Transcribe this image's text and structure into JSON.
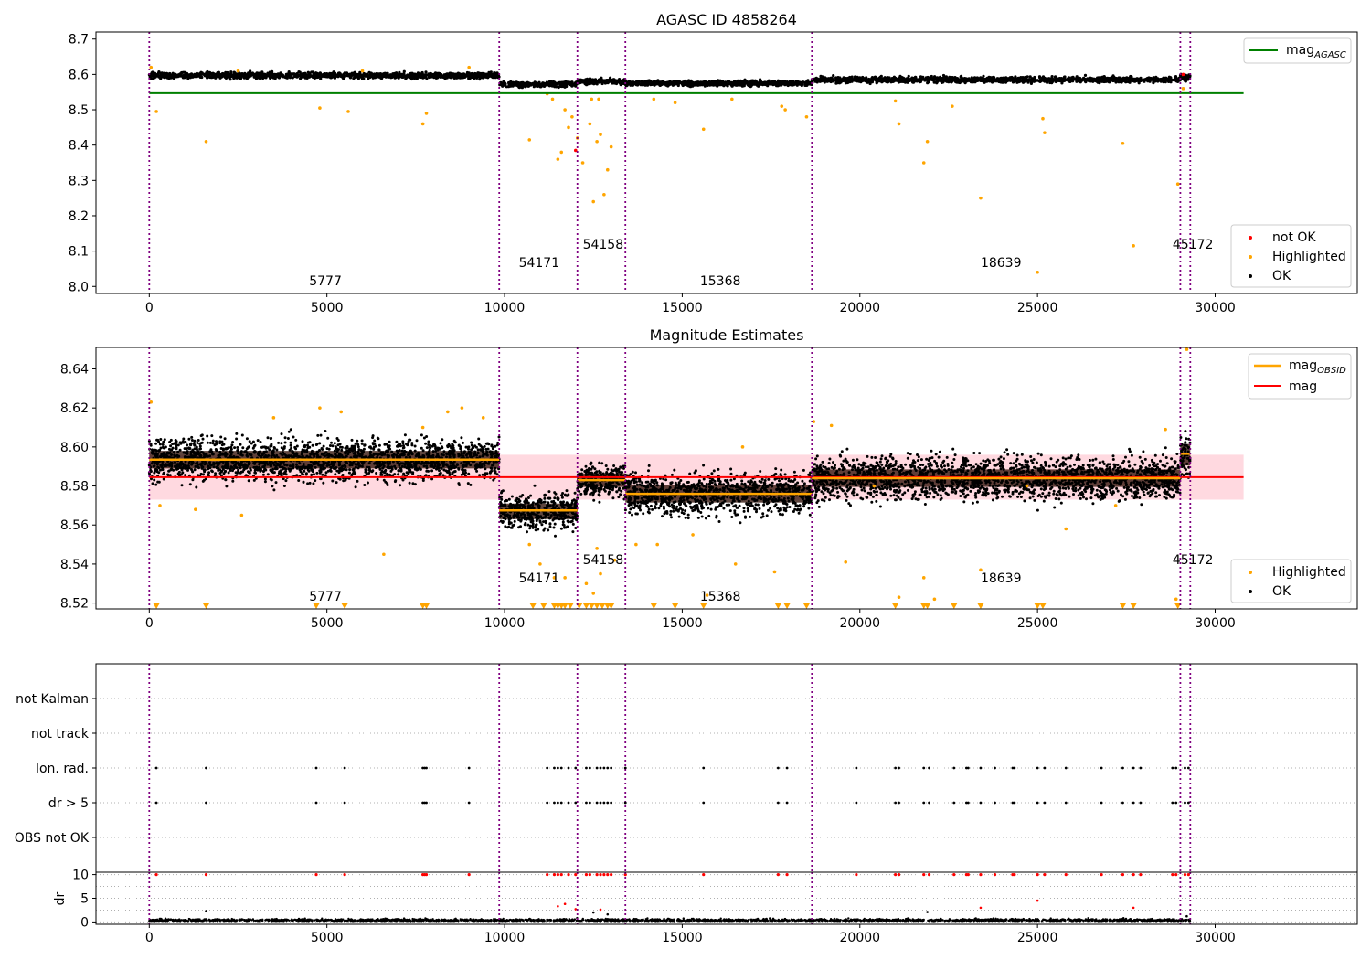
{
  "figure": {
    "width": 1500,
    "height": 1050
  },
  "colors": {
    "ok": "#000000",
    "highlighted": "#ffa500",
    "not_ok": "#ff0000",
    "agasc_line": "#008000",
    "mag_line": "#ff0000",
    "mag_obsid": "#ffa500",
    "mag_band": "#ffc0cb",
    "obsid_vline": "#800080",
    "dark_band": "#2a0a00",
    "grid": "#b0b0b0"
  },
  "obsids": [
    {
      "label": "5777",
      "start": 0,
      "end": 9850,
      "mag": 8.5935,
      "label_x": 4500,
      "label_row": 2
    },
    {
      "label": "54171",
      "start": 9850,
      "end": 12050,
      "mag": 8.5675,
      "label_x": 10400,
      "label_row": 1
    },
    {
      "label": "54158",
      "start": 12050,
      "end": 13400,
      "mag": 8.583,
      "label_x": 12200,
      "label_row": 0
    },
    {
      "label": "15368",
      "start": 13400,
      "end": 18650,
      "mag": 8.576,
      "label_x": 15500,
      "label_row": 2
    },
    {
      "label": "18639",
      "start": 18650,
      "end": 29020,
      "mag": 8.584,
      "label_x": 23400,
      "label_row": 1
    },
    {
      "label": "45172",
      "start": 29020,
      "end": 29300,
      "mag": 8.5965,
      "label_x": 28800,
      "label_row": 0
    }
  ],
  "chart_data": [
    {
      "type": "scatter",
      "title": "AGASC ID 4858264",
      "xlabel": "",
      "ylabel": "",
      "xlim": [
        -1500,
        34000
      ],
      "ylim": [
        7.98,
        8.72
      ],
      "x_ticks": [
        0,
        5000,
        10000,
        15000,
        20000,
        25000,
        30000
      ],
      "y_ticks": [
        8.0,
        8.1,
        8.2,
        8.3,
        8.4,
        8.5,
        8.6,
        8.7
      ],
      "hlines": [
        {
          "name": "mag_AGASC",
          "y": 8.547,
          "x_range": [
            0,
            30800
          ]
        }
      ],
      "series": [
        {
          "name": "OK",
          "segments": [
            {
              "x_range": [
                0,
                9850
              ],
              "y_center": 8.597,
              "y_spread": 0.009
            },
            {
              "x_range": [
                9850,
                12050
              ],
              "y_center": 8.572,
              "y_spread": 0.008
            },
            {
              "x_range": [
                12050,
                13400
              ],
              "y_center": 8.58,
              "y_spread": 0.008
            },
            {
              "x_range": [
                13400,
                18650
              ],
              "y_center": 8.575,
              "y_spread": 0.008
            },
            {
              "x_range": [
                18650,
                29020
              ],
              "y_center": 8.585,
              "y_spread": 0.009
            },
            {
              "x_range": [
                29020,
                29300
              ],
              "y_center": 8.592,
              "y_spread": 0.01
            }
          ]
        },
        {
          "name": "Highlighted",
          "points": [
            [
              50,
              8.62
            ],
            [
              200,
              8.495
            ],
            [
              1600,
              8.41
            ],
            [
              4800,
              8.505
            ],
            [
              5600,
              8.495
            ],
            [
              7700,
              8.46
            ],
            [
              7800,
              8.49
            ],
            [
              10700,
              8.415
            ],
            [
              11200,
              8.545
            ],
            [
              11350,
              8.53
            ],
            [
              11500,
              8.36
            ],
            [
              11600,
              8.38
            ],
            [
              11700,
              8.5
            ],
            [
              11800,
              8.45
            ],
            [
              11900,
              8.48
            ],
            [
              12050,
              8.42
            ],
            [
              12200,
              8.35
            ],
            [
              12400,
              8.46
            ],
            [
              12500,
              8.24
            ],
            [
              12600,
              8.41
            ],
            [
              12700,
              8.43
            ],
            [
              12800,
              8.26
            ],
            [
              12900,
              8.33
            ],
            [
              13000,
              8.395
            ],
            [
              12450,
              8.53
            ],
            [
              12650,
              8.53
            ],
            [
              14200,
              8.53
            ],
            [
              14800,
              8.52
            ],
            [
              15600,
              8.445
            ],
            [
              16400,
              8.53
            ],
            [
              17800,
              8.51
            ],
            [
              17900,
              8.5
            ],
            [
              18500,
              8.48
            ],
            [
              21000,
              8.525
            ],
            [
              21100,
              8.46
            ],
            [
              21800,
              8.35
            ],
            [
              21900,
              8.41
            ],
            [
              22600,
              8.51
            ],
            [
              23400,
              8.25
            ],
            [
              25000,
              8.04
            ],
            [
              25150,
              8.475
            ],
            [
              25200,
              8.435
            ],
            [
              27400,
              8.405
            ],
            [
              27700,
              8.115
            ],
            [
              28950,
              8.29
            ],
            [
              29100,
              8.56
            ],
            [
              2500,
              8.61
            ],
            [
              6000,
              8.61
            ],
            [
              9000,
              8.62
            ]
          ]
        },
        {
          "name": "not OK",
          "points": [
            [
              12000,
              8.385
            ],
            [
              29100,
              8.6
            ]
          ]
        }
      ],
      "vlines": [
        0,
        9850,
        12050,
        13400,
        18650,
        29020,
        29300
      ],
      "legends": [
        {
          "position": "top-right",
          "entries": [
            "mag_AGASC"
          ]
        },
        {
          "position": "bottom-right",
          "entries": [
            "not OK",
            "Highlighted",
            "OK"
          ]
        }
      ]
    },
    {
      "type": "scatter",
      "title": "Magnitude Estimates",
      "xlabel": "",
      "ylabel": "",
      "xlim": [
        -1500,
        34000
      ],
      "ylim": [
        8.517,
        8.651
      ],
      "x_ticks": [
        0,
        5000,
        10000,
        15000,
        20000,
        25000,
        30000
      ],
      "y_ticks": [
        8.52,
        8.54,
        8.56,
        8.58,
        8.6,
        8.62,
        8.64
      ],
      "hlines": [
        {
          "name": "mag",
          "y": 8.5845,
          "band": [
            8.573,
            8.596
          ],
          "x_range": [
            0,
            30800
          ]
        }
      ],
      "series": [
        {
          "name": "mag_OBSID",
          "type": "step"
        },
        {
          "name": "OK",
          "segments": [
            {
              "x_range": [
                0,
                9850
              ],
              "y_center": 8.5935,
              "y_spread": 0.009
            },
            {
              "x_range": [
                9850,
                12050
              ],
              "y_center": 8.567,
              "y_spread": 0.008
            },
            {
              "x_range": [
                12050,
                13400
              ],
              "y_center": 8.583,
              "y_spread": 0.007
            },
            {
              "x_range": [
                13400,
                18650
              ],
              "y_center": 8.576,
              "y_spread": 0.009
            },
            {
              "x_range": [
                18650,
                29020
              ],
              "y_center": 8.584,
              "y_spread": 0.009
            },
            {
              "x_range": [
                29020,
                29300
              ],
              "y_center": 8.596,
              "y_spread": 0.011
            }
          ]
        },
        {
          "name": "Highlighted",
          "points": [
            [
              50,
              8.623
            ],
            [
              300,
              8.57
            ],
            [
              1300,
              8.568
            ],
            [
              2600,
              8.565
            ],
            [
              3500,
              8.615
            ],
            [
              4800,
              8.62
            ],
            [
              5400,
              8.618
            ],
            [
              6600,
              8.545
            ],
            [
              7700,
              8.61
            ],
            [
              8400,
              8.618
            ],
            [
              8800,
              8.62
            ],
            [
              9400,
              8.615
            ],
            [
              10700,
              8.55
            ],
            [
              11000,
              8.54
            ],
            [
              11400,
              8.533
            ],
            [
              11700,
              8.533
            ],
            [
              12300,
              8.53
            ],
            [
              12500,
              8.525
            ],
            [
              12700,
              8.535
            ],
            [
              12600,
              8.548
            ],
            [
              13100,
              8.542
            ],
            [
              13700,
              8.55
            ],
            [
              14300,
              8.55
            ],
            [
              15300,
              8.555
            ],
            [
              15700,
              8.524
            ],
            [
              16500,
              8.54
            ],
            [
              16700,
              8.6
            ],
            [
              17600,
              8.536
            ],
            [
              18700,
              8.613
            ],
            [
              19200,
              8.611
            ],
            [
              19600,
              8.541
            ],
            [
              20400,
              8.58
            ],
            [
              21100,
              8.523
            ],
            [
              21800,
              8.533
            ],
            [
              22100,
              8.522
            ],
            [
              23400,
              8.537
            ],
            [
              24700,
              8.58
            ],
            [
              25800,
              8.558
            ],
            [
              27200,
              8.57
            ],
            [
              28600,
              8.609
            ],
            [
              28900,
              8.522
            ],
            [
              29200,
              8.65
            ]
          ]
        },
        {
          "name": "Highlighted (clipped)",
          "x": [
            200,
            1600,
            4700,
            5500,
            7700,
            7800,
            10800,
            11100,
            11400,
            11500,
            11600,
            11700,
            11850,
            12100,
            12300,
            12450,
            12600,
            12750,
            12900,
            13000,
            14200,
            14800,
            15600,
            17700,
            17950,
            18500,
            21000,
            21800,
            21900,
            22650,
            23400,
            25000,
            25150,
            27400,
            27700,
            28950
          ]
        }
      ],
      "vlines": [
        0,
        9850,
        12050,
        13400,
        18650,
        29020,
        29300
      ],
      "legends": [
        {
          "position": "top-right",
          "entries": [
            "mag_OBSID",
            "mag"
          ]
        },
        {
          "position": "bottom-right",
          "entries": [
            "Highlighted",
            "OK"
          ]
        }
      ]
    },
    {
      "type": "scatter",
      "title": "",
      "xlabel": "",
      "ylabel": "",
      "flag_rows": [
        "not Kalman",
        "not track",
        "Ion. rad.",
        "dr > 5",
        "OBS not OK"
      ],
      "flag_x": [
        200,
        1600,
        4700,
        5500,
        7700,
        7750,
        7800,
        9000,
        11200,
        11400,
        11500,
        11600,
        11800,
        12000,
        12300,
        12400,
        12600,
        12700,
        12800,
        12900,
        13000,
        13400,
        15600,
        17700,
        17950,
        19900,
        21000,
        21100,
        21800,
        21950,
        22650,
        23000,
        23050,
        23400,
        23800,
        24300,
        24350,
        25000,
        25200,
        25800,
        26800,
        27400,
        27700,
        27900,
        28800,
        28900,
        29150,
        29250
      ],
      "vlines": [
        0,
        9850,
        12050,
        13400,
        18650,
        29020,
        29300
      ],
      "xlim": [
        -1500,
        34000
      ]
    },
    {
      "type": "scatter",
      "title": "",
      "xlabel": "",
      "ylabel": "dr",
      "xlim": [
        -1500,
        34000
      ],
      "ylim": [
        -0.5,
        10.5
      ],
      "x_ticks": [
        0,
        5000,
        10000,
        15000,
        20000,
        25000,
        30000
      ],
      "y_ticks": [
        0,
        5,
        10
      ],
      "series": [
        {
          "name": "dr OK",
          "level": 0.2,
          "spread": 0.2
        },
        {
          "name": "dr large",
          "points": [
            [
              1600,
              2.3
            ],
            [
              11500,
              3.3
            ],
            [
              11700,
              3.8
            ],
            [
              12000,
              2.7
            ],
            [
              12500,
              2.0
            ],
            [
              12700,
              2.6
            ],
            [
              12900,
              1.6
            ],
            [
              21900,
              2.1
            ],
            [
              23400,
              3.0
            ],
            [
              25000,
              4.5
            ],
            [
              27700,
              3.0
            ],
            [
              29200,
              1.2
            ]
          ]
        },
        {
          "name": "dr clipped",
          "level": 10
        }
      ],
      "vlines": [
        0,
        9850,
        12050,
        13400,
        18650,
        29020,
        29300
      ]
    }
  ],
  "legend_text": {
    "mag_agasc_main": "mag",
    "mag_agasc_sub": "AGASC",
    "not_ok": "not OK",
    "highlighted": "Highlighted",
    "ok": "OK",
    "mag_obsid_main": "mag",
    "mag_obsid_sub": "OBSID",
    "mag": "mag"
  }
}
